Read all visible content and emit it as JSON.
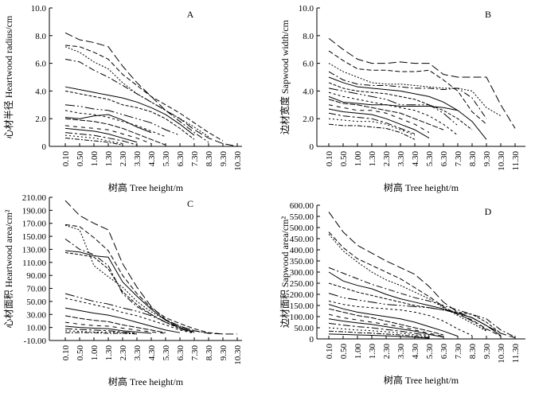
{
  "chart_data": [
    {
      "type": "line",
      "panel": "A",
      "ylabel": "心材半径 Heartwood radius/cm",
      "xlabel": "树高 Tree height/m",
      "ylim": [
        0,
        10
      ],
      "yticks": [
        "0",
        "2.0",
        "4.0",
        "6.0",
        "8.0",
        "10.0"
      ],
      "categories": [
        "0.10",
        "0.50",
        "1.00",
        "1.30",
        "2.30",
        "3.30",
        "4.30",
        "5.30",
        "6.30",
        "7.30",
        "8.30",
        "9.30",
        "10.30"
      ],
      "series": [
        {
          "values": [
            8.2,
            7.7,
            7.5,
            7.2,
            5.8,
            4.6,
            3.6,
            2.6,
            2.0,
            1.2,
            0.6,
            0.2,
            0
          ]
        },
        {
          "values": [
            7.3,
            7.2,
            6.8,
            6.3,
            5.2,
            4.4,
            3.6,
            3.0,
            2.4,
            1.7,
            1.0,
            0.4,
            null
          ]
        },
        {
          "values": [
            7.2,
            6.8,
            6.1,
            5.6,
            4.6,
            3.8,
            3.2,
            2.6,
            2.0,
            1.4,
            0.7,
            null,
            null
          ]
        },
        {
          "values": [
            6.3,
            6.1,
            5.5,
            5.0,
            4.4,
            3.8,
            3.2,
            2.6,
            1.8,
            1.0,
            0.3,
            null,
            null
          ]
        },
        {
          "values": [
            4.3,
            4.1,
            3.9,
            3.7,
            3.5,
            3.2,
            2.8,
            2.3,
            1.6,
            0.8,
            null,
            null,
            null
          ]
        },
        {
          "values": [
            4.0,
            3.8,
            3.6,
            3.4,
            3.0,
            2.8,
            2.5,
            2.0,
            1.3,
            0.5,
            null,
            null,
            null
          ]
        },
        {
          "values": [
            3.0,
            2.9,
            2.7,
            2.6,
            2.3,
            2.0,
            1.7,
            1.2,
            0.8,
            null,
            null,
            null,
            null
          ]
        },
        {
          "values": [
            2.6,
            2.4,
            2.3,
            2.1,
            1.8,
            1.5,
            1.1,
            0.7,
            null,
            null,
            null,
            null,
            null
          ]
        },
        {
          "values": [
            2.1,
            2.0,
            2.2,
            2.3,
            1.9,
            1.4,
            1.0,
            null,
            null,
            null,
            null,
            null,
            null
          ]
        },
        {
          "values": [
            2.0,
            1.9,
            1.8,
            1.6,
            1.3,
            0.9,
            0.5,
            0.1,
            null,
            null,
            null,
            null,
            null
          ]
        },
        {
          "values": [
            1.5,
            1.4,
            1.3,
            1.2,
            0.9,
            0.6,
            0.2,
            null,
            null,
            null,
            null,
            null,
            null
          ]
        },
        {
          "values": [
            1.3,
            1.2,
            1.1,
            0.9,
            0.6,
            0.3,
            null,
            null,
            null,
            null,
            null,
            null,
            null
          ]
        },
        {
          "values": [
            1.0,
            0.9,
            0.8,
            0.6,
            0.4,
            0.1,
            null,
            null,
            null,
            null,
            null,
            null,
            null
          ]
        },
        {
          "values": [
            0.8,
            0.7,
            0.6,
            0.4,
            0.2,
            null,
            null,
            null,
            null,
            null,
            null,
            null,
            null
          ]
        },
        {
          "values": [
            0.6,
            0.5,
            0.4,
            0.3,
            0.1,
            null,
            null,
            null,
            null,
            null,
            null,
            null,
            null
          ]
        }
      ]
    },
    {
      "type": "line",
      "panel": "B",
      "ylabel": "边材宽度 Sapwood width/cm",
      "xlabel": "树高 Tree height/m",
      "ylim": [
        0,
        10
      ],
      "yticks": [
        "0",
        "2.0",
        "4.0",
        "6.0",
        "8.0",
        "10.0"
      ],
      "categories": [
        "0.10",
        "0.50",
        "1.00",
        "1.30",
        "2.30",
        "3.30",
        "4.30",
        "5.30",
        "6.30",
        "7.30",
        "8.30",
        "9.30",
        "10.30",
        "11.30"
      ],
      "series": [
        {
          "values": [
            7.8,
            7.0,
            6.3,
            6.0,
            6.0,
            6.1,
            6.0,
            6.0,
            5.2,
            5.0,
            5.0,
            5.0,
            3.0,
            1.3
          ]
        },
        {
          "values": [
            6.9,
            6.2,
            5.6,
            5.5,
            5.5,
            5.4,
            5.4,
            5.5,
            4.8,
            4.0,
            2.5,
            1.6,
            null,
            null
          ]
        },
        {
          "values": [
            6.0,
            5.4,
            5.0,
            4.6,
            4.5,
            4.5,
            4.4,
            4.3,
            4.2,
            4.2,
            4.0,
            2.8,
            2.2,
            null
          ]
        },
        {
          "values": [
            5.4,
            4.8,
            4.5,
            4.4,
            4.4,
            4.3,
            4.2,
            4.2,
            4.1,
            4.2,
            3.5,
            2.0,
            null,
            null
          ]
        },
        {
          "values": [
            5.0,
            4.6,
            4.3,
            4.2,
            4.1,
            4.0,
            3.8,
            3.6,
            3.2,
            2.6,
            1.8,
            0.5,
            null,
            null
          ]
        },
        {
          "values": [
            4.6,
            4.2,
            4.0,
            3.9,
            3.8,
            3.6,
            3.4,
            3.0,
            2.6,
            2.0,
            1.2,
            null,
            null,
            null
          ]
        },
        {
          "values": [
            4.2,
            4.0,
            3.8,
            3.6,
            3.4,
            3.0,
            3.0,
            3.0,
            2.4,
            1.5,
            null,
            null,
            null,
            null
          ]
        },
        {
          "values": [
            3.9,
            3.6,
            3.4,
            3.2,
            3.0,
            2.8,
            2.6,
            2.2,
            1.6,
            0.8,
            null,
            null,
            null,
            null
          ]
        },
        {
          "values": [
            3.6,
            3.2,
            3.1,
            3.0,
            3.0,
            2.9,
            2.9,
            2.9,
            2.8,
            2.6,
            null,
            null,
            null,
            null
          ]
        },
        {
          "values": [
            3.4,
            3.1,
            3.0,
            2.8,
            2.6,
            2.4,
            2.0,
            1.6,
            1.2,
            null,
            null,
            null,
            null,
            null
          ]
        },
        {
          "values": [
            3.0,
            2.8,
            2.6,
            2.6,
            2.4,
            2.0,
            1.6,
            1.0,
            null,
            null,
            null,
            null,
            null,
            null
          ]
        },
        {
          "values": [
            2.7,
            2.5,
            2.4,
            2.3,
            2.0,
            1.6,
            1.2,
            0.6,
            null,
            null,
            null,
            null,
            null,
            null
          ]
        },
        {
          "values": [
            2.4,
            2.2,
            2.1,
            2.0,
            1.7,
            1.3,
            0.9,
            null,
            null,
            null,
            null,
            null,
            null,
            null
          ]
        },
        {
          "values": [
            2.0,
            1.9,
            1.8,
            1.8,
            1.6,
            1.2,
            0.8,
            null,
            null,
            null,
            null,
            null,
            null,
            null
          ]
        },
        {
          "values": [
            1.6,
            1.5,
            1.5,
            1.4,
            1.3,
            1.0,
            0.5,
            null,
            null,
            null,
            null,
            null,
            null,
            null
          ]
        }
      ]
    },
    {
      "type": "line",
      "panel": "C",
      "ylabel": "心材面积 Heartwood area/cm²",
      "xlabel": "树高 Tree height/m",
      "ylim": [
        -10,
        210
      ],
      "yticks": [
        "-10.00",
        "10.00",
        "30.00",
        "50.00",
        "70.00",
        "90.00",
        "110.00",
        "130.00",
        "150.00",
        "170.00",
        "190.00",
        "210.00"
      ],
      "categories": [
        "0.10",
        "0.50",
        "1.00",
        "1.30",
        "2.30",
        "3.30",
        "4.30",
        "5.30",
        "6.30",
        "7.30",
        "8.30",
        "9.30",
        "10.30"
      ],
      "series": [
        {
          "values": [
            205,
            182,
            170,
            160,
            108,
            72,
            42,
            22,
            12,
            5,
            1,
            0,
            0
          ]
        },
        {
          "values": [
            168,
            165,
            148,
            128,
            90,
            62,
            40,
            25,
            16,
            8,
            2,
            0,
            null
          ]
        },
        {
          "values": [
            167,
            160,
            105,
            88,
            72,
            50,
            34,
            22,
            12,
            5,
            1,
            null,
            null
          ]
        },
        {
          "values": [
            146,
            130,
            122,
            105,
            62,
            42,
            30,
            18,
            10,
            3,
            null,
            null,
            null
          ]
        },
        {
          "values": [
            128,
            126,
            120,
            118,
            80,
            58,
            38,
            21,
            10,
            3,
            null,
            null,
            null
          ]
        },
        {
          "values": [
            125,
            122,
            118,
            100,
            65,
            45,
            30,
            18,
            8,
            2,
            null,
            null,
            null
          ]
        },
        {
          "values": [
            62,
            56,
            50,
            46,
            40,
            35,
            28,
            18,
            8,
            2,
            null,
            null,
            null
          ]
        },
        {
          "values": [
            55,
            50,
            45,
            40,
            33,
            28,
            21,
            14,
            6,
            1,
            null,
            null,
            null
          ]
        },
        {
          "values": [
            40,
            36,
            32,
            29,
            24,
            18,
            12,
            6,
            2,
            null,
            null,
            null,
            null
          ]
        },
        {
          "values": [
            28,
            24,
            21,
            19,
            14,
            10,
            6,
            2,
            null,
            null,
            null,
            null,
            null
          ]
        },
        {
          "values": [
            18,
            15,
            13,
            12,
            9,
            6,
            3,
            1,
            null,
            null,
            null,
            null,
            null
          ]
        },
        {
          "values": [
            12,
            10,
            9,
            8,
            5,
            3,
            1,
            null,
            null,
            null,
            null,
            null,
            null
          ]
        },
        {
          "values": [
            8,
            7,
            6,
            5,
            3,
            1,
            null,
            null,
            null,
            null,
            null,
            null,
            null
          ]
        },
        {
          "values": [
            5,
            4,
            3,
            3,
            2,
            1,
            null,
            null,
            null,
            null,
            null,
            null,
            null
          ]
        },
        {
          "values": [
            2,
            2,
            2,
            1,
            1,
            0,
            null,
            null,
            null,
            null,
            null,
            null,
            null
          ]
        }
      ]
    },
    {
      "type": "line",
      "panel": "D",
      "ylabel": "边材面积 Sapwood area/cm²",
      "xlabel": "树高 Tree height/m",
      "ylim": [
        0,
        600
      ],
      "yticks": [
        "0",
        "50.00",
        "100.00",
        "150.00",
        "200.00",
        "250.00",
        "300.00",
        "350.00",
        "400.00",
        "450.00",
        "500.00",
        "550.00",
        "600.00"
      ],
      "categories": [
        "0.10",
        "0.50",
        "1.00",
        "1.30",
        "2.30",
        "3.30",
        "4.30",
        "5.30",
        "6.30",
        "7.30",
        "8.30",
        "9.30",
        "10.30",
        "11.30"
      ],
      "series": [
        {
          "values": [
            570,
            480,
            420,
            385,
            350,
            320,
            290,
            235,
            165,
            120,
            95,
            60,
            25,
            5
          ]
        },
        {
          "values": [
            480,
            410,
            360,
            330,
            300,
            270,
            230,
            190,
            145,
            110,
            85,
            45,
            12,
            null
          ]
        },
        {
          "values": [
            470,
            395,
            345,
            300,
            265,
            240,
            210,
            180,
            140,
            105,
            70,
            35,
            null,
            null
          ]
        },
        {
          "values": [
            320,
            295,
            270,
            245,
            225,
            205,
            185,
            170,
            150,
            130,
            110,
            90,
            40,
            8
          ]
        },
        {
          "values": [
            300,
            260,
            240,
            225,
            200,
            180,
            165,
            150,
            135,
            115,
            95,
            60,
            15,
            null
          ]
        },
        {
          "values": [
            250,
            230,
            210,
            195,
            180,
            165,
            150,
            140,
            130,
            120,
            110,
            75,
            25,
            null
          ]
        },
        {
          "values": [
            205,
            185,
            175,
            165,
            155,
            150,
            145,
            140,
            130,
            115,
            80,
            40,
            null,
            null
          ]
        },
        {
          "values": [
            170,
            155,
            145,
            140,
            135,
            130,
            120,
            105,
            80,
            45,
            15,
            null,
            null,
            null
          ]
        },
        {
          "values": [
            155,
            135,
            120,
            110,
            100,
            90,
            75,
            55,
            35,
            12,
            null,
            null,
            null,
            null
          ]
        },
        {
          "values": [
            135,
            120,
            105,
            95,
            80,
            65,
            50,
            35,
            18,
            null,
            null,
            null,
            null,
            null
          ]
        },
        {
          "values": [
            110,
            95,
            85,
            75,
            65,
            55,
            40,
            25,
            12,
            null,
            null,
            null,
            null,
            null
          ]
        },
        {
          "values": [
            90,
            80,
            72,
            65,
            55,
            45,
            35,
            20,
            8,
            null,
            null,
            null,
            null,
            null
          ]
        },
        {
          "values": [
            70,
            62,
            55,
            50,
            42,
            35,
            25,
            15,
            null,
            null,
            null,
            null,
            null,
            null
          ]
        },
        {
          "values": [
            50,
            45,
            40,
            37,
            32,
            26,
            18,
            10,
            null,
            null,
            null,
            null,
            null,
            null
          ]
        },
        {
          "values": [
            35,
            32,
            28,
            26,
            22,
            18,
            12,
            6,
            null,
            null,
            null,
            null,
            null,
            null
          ]
        },
        {
          "values": [
            22,
            20,
            18,
            16,
            14,
            11,
            7,
            3,
            null,
            null,
            null,
            null,
            null,
            null
          ]
        }
      ]
    }
  ]
}
